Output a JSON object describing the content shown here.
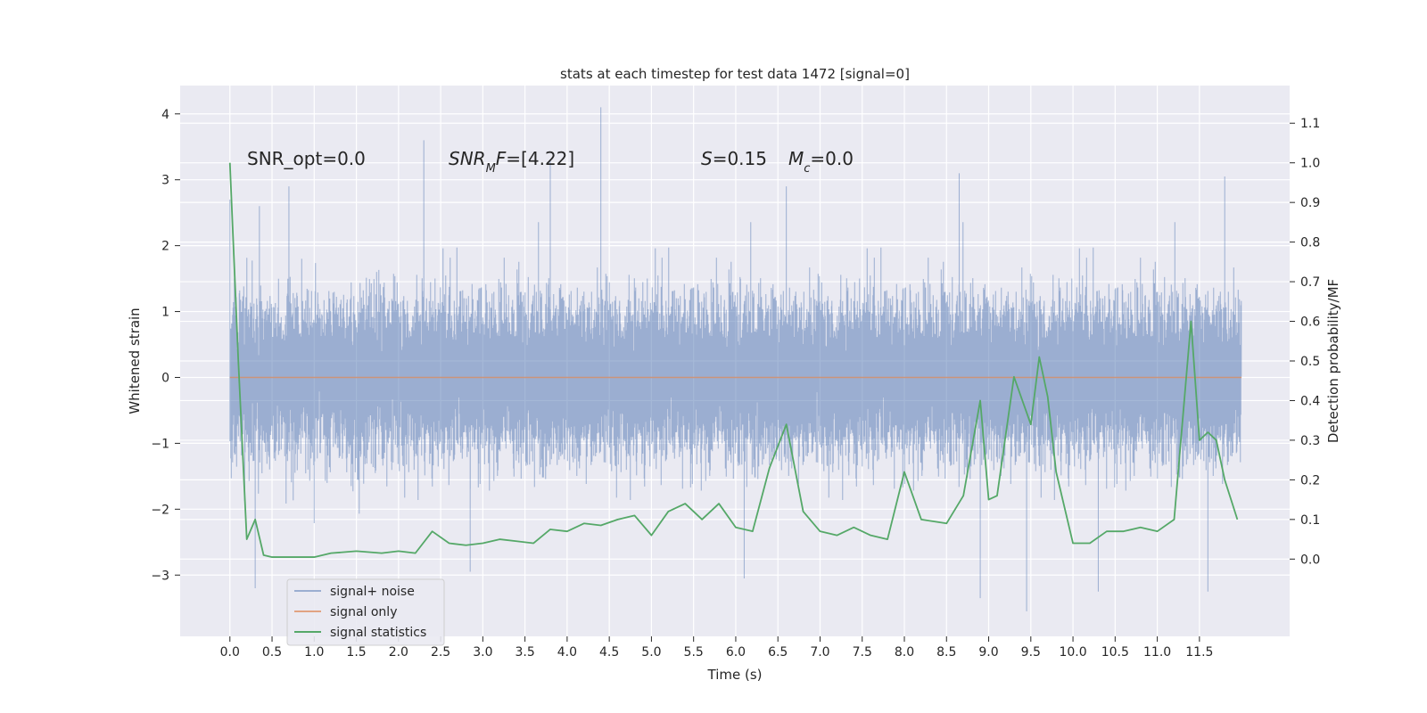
{
  "chart_data": {
    "type": "line",
    "title": "stats at each timestep for test data 1472 [signal=0]",
    "xlabel": "Time (s)",
    "ylabel": "Whitened strain",
    "y2label": "Detection probability/MF",
    "xlim": [
      -0.59,
      12.57
    ],
    "ylim": [
      -3.93,
      4.43
    ],
    "y2lim": [
      -0.195,
      1.195
    ],
    "xticks": [
      0.0,
      0.5,
      1.0,
      1.5,
      2.0,
      2.5,
      3.0,
      3.5,
      4.0,
      4.5,
      5.0,
      5.5,
      6.0,
      6.5,
      7.0,
      7.5,
      8.0,
      8.5,
      9.0,
      9.5,
      10.0,
      10.5,
      11.0,
      11.5
    ],
    "xtick_labels": [
      "0.0",
      "0.5",
      "1.0",
      "1.5",
      "2.0",
      "2.5",
      "3.0",
      "3.5",
      "4.0",
      "4.5",
      "5.0",
      "5.5",
      "6.0",
      "6.5",
      "7.0",
      "7.5",
      "8.0",
      "8.5",
      "9.0",
      "9.5",
      "10.0",
      "10.5",
      "11.0",
      "11.5"
    ],
    "yticks": [
      -3,
      -2,
      -1,
      0,
      1,
      2,
      3,
      4
    ],
    "ytick_labels": [
      "−3",
      "−2",
      "−1",
      "0",
      "1",
      "2",
      "3",
      "4"
    ],
    "y2ticks": [
      0.0,
      0.1,
      0.2,
      0.3,
      0.4,
      0.5,
      0.6,
      0.7,
      0.8,
      0.9,
      1.0,
      1.1
    ],
    "y2tick_labels": [
      "0.0",
      "0.1",
      "0.2",
      "0.3",
      "0.4",
      "0.5",
      "0.6",
      "0.7",
      "0.8",
      "0.9",
      "1.0",
      "1.1"
    ],
    "grid": true,
    "legend_position": "lower-left",
    "annotations": [
      {
        "text": "SNR_opt=0.0",
        "x": 0.2,
        "y": 3.35
      },
      {
        "text": "SNR_MF=[4.22]",
        "x": 2.6,
        "y": 3.35
      },
      {
        "text": "S=0.15   M_c=0.0",
        "x": 5.6,
        "y": 3.35
      }
    ],
    "series": [
      {
        "name": "signal+ noise",
        "axis": "left",
        "color": "#4c72b0",
        "opacity": 0.5,
        "style": "dense-noise",
        "x_range": [
          0.0,
          12.0
        ],
        "sample_rate": 2048,
        "envelope_sigma": 1.0,
        "peaks": [
          {
            "x": 0.0,
            "y": 2.7
          },
          {
            "x": 0.3,
            "y": -3.2
          },
          {
            "x": 0.35,
            "y": 2.6
          },
          {
            "x": 0.7,
            "y": 2.9
          },
          {
            "x": 2.3,
            "y": 3.6
          },
          {
            "x": 2.3,
            "y": 2.85
          },
          {
            "x": 2.85,
            "y": -2.95
          },
          {
            "x": 3.8,
            "y": 3.3
          },
          {
            "x": 4.4,
            "y": 4.1
          },
          {
            "x": 6.1,
            "y": -3.05
          },
          {
            "x": 6.6,
            "y": 2.9
          },
          {
            "x": 8.65,
            "y": 3.1
          },
          {
            "x": 8.9,
            "y": -3.35
          },
          {
            "x": 9.45,
            "y": -3.55
          },
          {
            "x": 10.3,
            "y": -3.25
          },
          {
            "x": 11.6,
            "y": -3.25
          },
          {
            "x": 11.8,
            "y": 3.05
          }
        ]
      },
      {
        "name": "signal only",
        "axis": "left",
        "color": "#dd8452",
        "opacity": 0.7,
        "x": [
          0.0,
          12.0
        ],
        "y": [
          0.0,
          0.0
        ]
      },
      {
        "name": "signal statistics",
        "axis": "right",
        "color": "#55a868",
        "x": [
          0.0,
          0.1,
          0.2,
          0.3,
          0.4,
          0.5,
          0.6,
          0.8,
          1.0,
          1.2,
          1.5,
          1.8,
          2.0,
          2.2,
          2.4,
          2.6,
          2.8,
          3.0,
          3.2,
          3.4,
          3.6,
          3.8,
          4.0,
          4.2,
          4.4,
          4.6,
          4.8,
          5.0,
          5.2,
          5.4,
          5.6,
          5.8,
          6.0,
          6.2,
          6.4,
          6.6,
          6.8,
          7.0,
          7.2,
          7.4,
          7.6,
          7.8,
          8.0,
          8.2,
          8.5,
          8.7,
          8.9,
          9.0,
          9.1,
          9.3,
          9.5,
          9.6,
          9.7,
          9.8,
          10.0,
          10.2,
          10.4,
          10.6,
          10.8,
          11.0,
          11.2,
          11.4,
          11.5,
          11.6,
          11.7,
          11.8,
          11.95
        ],
        "y": [
          1.0,
          0.5,
          0.05,
          0.1,
          0.01,
          0.005,
          0.005,
          0.005,
          0.005,
          0.015,
          0.02,
          0.015,
          0.02,
          0.015,
          0.07,
          0.04,
          0.035,
          0.04,
          0.05,
          0.045,
          0.04,
          0.075,
          0.07,
          0.09,
          0.085,
          0.1,
          0.11,
          0.06,
          0.12,
          0.14,
          0.1,
          0.14,
          0.08,
          0.07,
          0.23,
          0.34,
          0.12,
          0.07,
          0.06,
          0.08,
          0.06,
          0.05,
          0.22,
          0.1,
          0.09,
          0.16,
          0.4,
          0.15,
          0.16,
          0.46,
          0.34,
          0.51,
          0.41,
          0.22,
          0.04,
          0.04,
          0.07,
          0.07,
          0.08,
          0.07,
          0.1,
          0.6,
          0.3,
          0.32,
          0.3,
          0.2,
          0.1
        ]
      }
    ]
  }
}
